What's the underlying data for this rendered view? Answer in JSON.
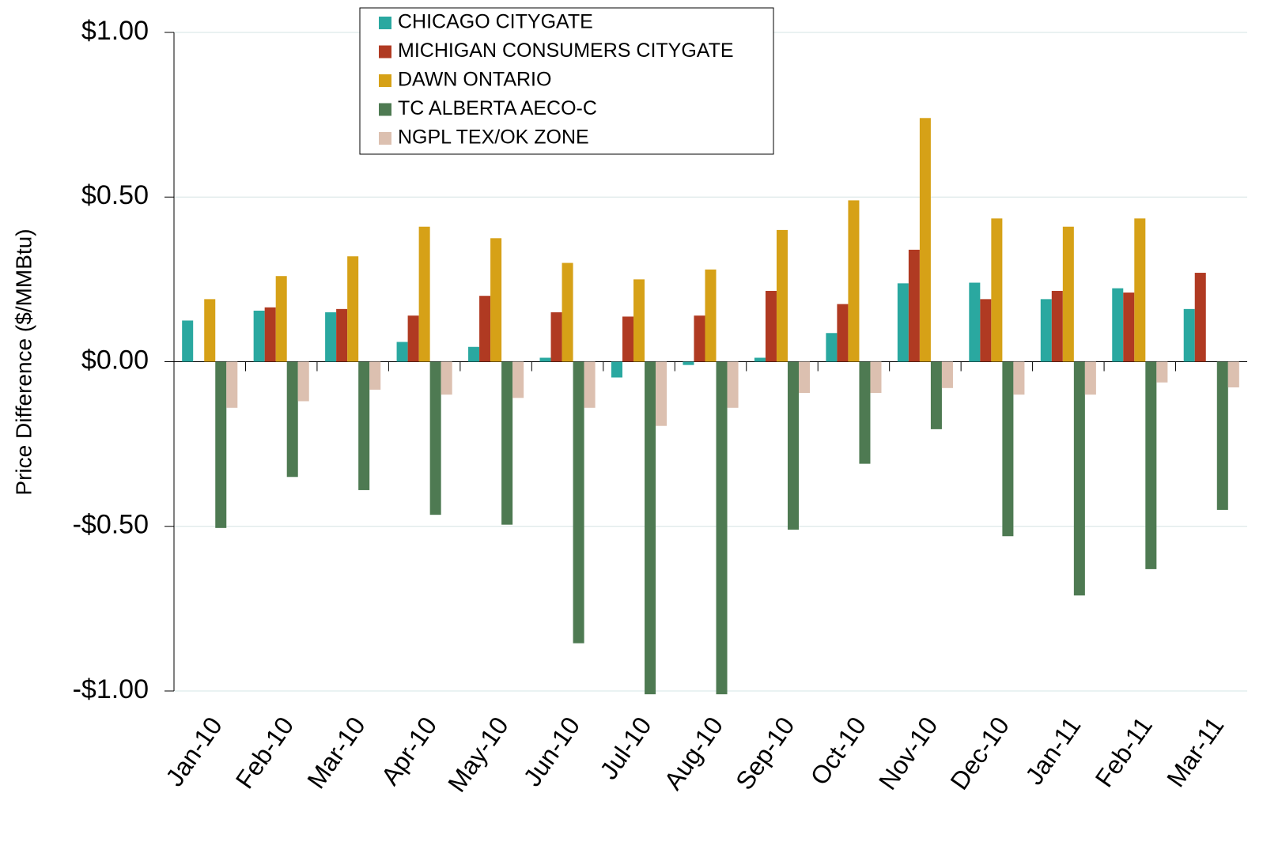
{
  "chart_data": {
    "type": "bar",
    "y_label": "Price Difference  ($/MMBtu)",
    "categories": [
      "Jan-10",
      "Feb-10",
      "Mar-10",
      "Apr-10",
      "May-10",
      "Jun-10",
      "Jul-10",
      "Aug-10",
      "Sep-10",
      "Oct-10",
      "Nov-10",
      "Dec-10",
      "Jan-11",
      "Feb-11",
      "Mar-11"
    ],
    "series": [
      {
        "name": "CHICAGO CITYGATE",
        "color": "#2aa8a0",
        "values": [
          0.125,
          0.155,
          0.15,
          0.06,
          0.045,
          0.012,
          -0.048,
          -0.01,
          0.012,
          0.087,
          0.238,
          0.24,
          0.19,
          0.223,
          0.16
        ]
      },
      {
        "name": "MICHIGAN CONSUMERS CITYGATE",
        "color": "#b03a22",
        "values": [
          null,
          0.165,
          0.16,
          0.14,
          0.2,
          0.15,
          0.137,
          0.14,
          0.215,
          0.175,
          0.34,
          0.19,
          0.215,
          0.21,
          0.27
        ]
      },
      {
        "name": "DAWN ONTARIO",
        "color": "#d6a117",
        "values": [
          0.19,
          0.26,
          0.32,
          0.41,
          0.375,
          0.3,
          0.25,
          0.28,
          0.4,
          0.49,
          0.74,
          0.435,
          0.41,
          0.435,
          null
        ]
      },
      {
        "name": "TC ALBERTA AECO-C",
        "color": "#4e7a52",
        "values": [
          -0.505,
          -0.35,
          -0.39,
          -0.465,
          -0.495,
          -0.855,
          -1.01,
          -1.01,
          -0.51,
          -0.31,
          -0.205,
          -0.53,
          -0.71,
          -0.63,
          -0.45
        ]
      },
      {
        "name": "NGPL TEX/OK ZONE",
        "color": "#dcc0b0",
        "values": [
          -0.14,
          -0.12,
          -0.085,
          -0.1,
          -0.11,
          -0.14,
          -0.195,
          -0.14,
          -0.095,
          -0.095,
          -0.08,
          -0.1,
          -0.1,
          -0.063,
          -0.078
        ]
      }
    ],
    "ylim": [
      -1,
      1
    ],
    "yticks": [
      {
        "value": -1,
        "label": "-$1.00"
      },
      {
        "value": -0.5,
        "label": "-$0.50"
      },
      {
        "value": 0,
        "label": "$0.00"
      },
      {
        "value": 0.5,
        "label": "$0.50"
      },
      {
        "value": 1,
        "label": "$1.00"
      }
    ],
    "grid": true
  }
}
